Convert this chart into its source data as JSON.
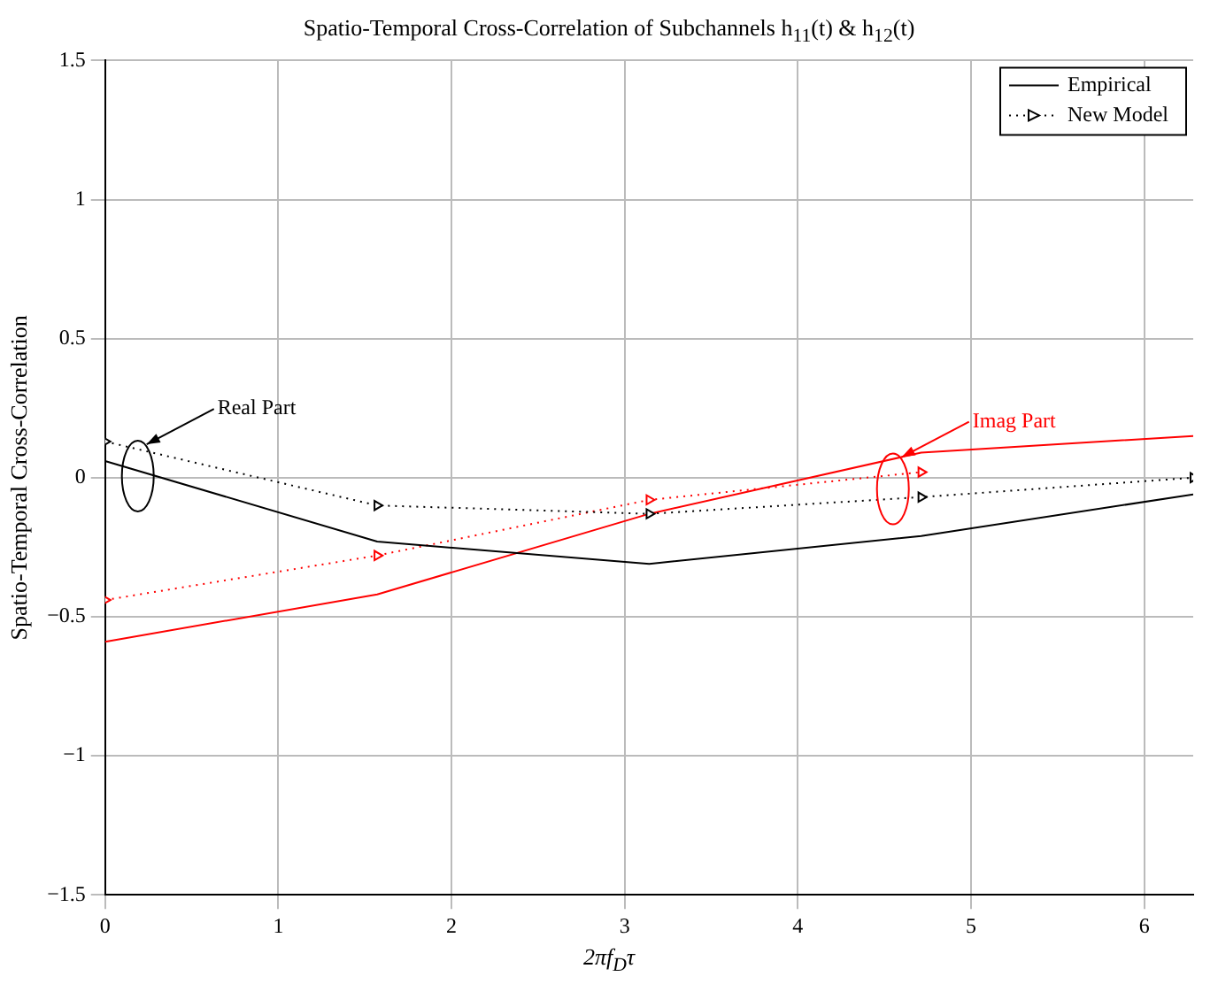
{
  "chart_data": {
    "type": "line",
    "title": "Spatio-Temporal Cross-Correlation of Subchannels h$_{11}$(t) & h$_{12}$(t)",
    "xlabel": "2πf$_{D}$τ",
    "ylabel": "Spatio-Temporal Cross-Correlation",
    "x": [
      0,
      1.571,
      3.142,
      4.712,
      6.283
    ],
    "series": [
      {
        "name": "Empirical",
        "color": "#000000",
        "line_style": "solid",
        "marker": "none",
        "values": [
          0.06,
          -0.23,
          -0.31,
          -0.21,
          -0.06
        ]
      },
      {
        "name": "New Model",
        "color": "#000000",
        "line_style": "dotted",
        "marker": "triangle",
        "values": [
          0.13,
          -0.1,
          -0.13,
          -0.07,
          0.0
        ]
      },
      {
        "color": "#ff0000",
        "line_style": "solid",
        "marker": "none",
        "values": [
          -0.59,
          -0.42,
          -0.13,
          0.09,
          0.15
        ]
      },
      {
        "color": "#ff0000",
        "line_style": "dotted",
        "marker": "triangle",
        "values": [
          -0.44,
          -0.28,
          -0.08,
          0.02,
          null
        ]
      }
    ],
    "annotations": [
      {
        "text": "Real Part",
        "x": 0.24,
        "y": 0.12
      },
      {
        "text": "Imag Part",
        "x": 4.6,
        "y": 0.074
      }
    ],
    "xlim": [
      0,
      6.283
    ],
    "xticks": [
      0,
      1,
      2,
      3,
      4,
      5,
      6
    ],
    "ylim": [
      -1.5,
      1.5
    ],
    "yticks": [
      -1.5,
      -1,
      -0.5,
      0,
      0.5,
      1,
      1.5
    ],
    "grid": true,
    "legend": "top right"
  }
}
